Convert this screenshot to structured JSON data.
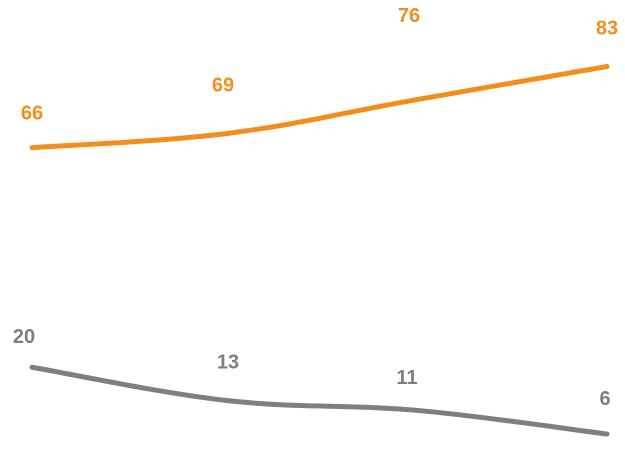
{
  "chart_data": {
    "type": "line",
    "x": [
      1,
      2,
      3,
      4
    ],
    "ylim": [
      0,
      100
    ],
    "grid": false,
    "legend": "none",
    "series": [
      {
        "values": [
          66,
          69,
          76,
          83
        ],
        "labels": [
          "66",
          "69",
          "76",
          "83"
        ],
        "color": "#F28E1E"
      },
      {
        "values": [
          20,
          13,
          11,
          6
        ],
        "labels": [
          "20",
          "13",
          "11",
          "6"
        ],
        "color": "#7F7F7F"
      }
    ]
  }
}
